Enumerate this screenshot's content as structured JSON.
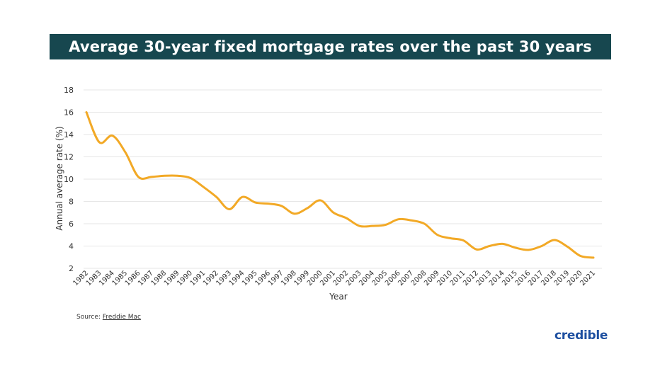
{
  "header": {
    "title": "Average 30-year fixed mortgage rates over the past 30 years"
  },
  "footer": {
    "source_label": "Source:",
    "source_link": "Freddie Mac",
    "logo": "credible"
  },
  "colors": {
    "title_bg": "#17474f",
    "line": "#f2a926",
    "grid": "#e6e6e6",
    "logo": "#1d4fa0"
  },
  "chart_data": {
    "type": "line",
    "title": "Average 30-year fixed mortgage rates over the past 30 years",
    "xlabel": "Year",
    "ylabel": "Annual average rate (%)",
    "ylim": [
      2,
      18
    ],
    "yticks": [
      2,
      4,
      6,
      8,
      10,
      12,
      14,
      16,
      18
    ],
    "grid": true,
    "x": [
      "1982",
      "1983",
      "1984",
      "1985",
      "1986",
      "1987",
      "1988",
      "1989",
      "1990",
      "1991",
      "1992",
      "1993",
      "1994",
      "1995",
      "1996",
      "1997",
      "1998",
      "1999",
      "2000",
      "2001",
      "2002",
      "2003",
      "2004",
      "2005",
      "2006",
      "2007",
      "2008",
      "2009",
      "2010",
      "2011",
      "2012",
      "2013",
      "2014",
      "2015",
      "2016",
      "2017",
      "2018",
      "2019",
      "2020",
      "2021"
    ],
    "series": [
      {
        "values": [
          16.0,
          13.3,
          13.9,
          12.4,
          10.2,
          10.2,
          10.3,
          10.3,
          10.1,
          9.3,
          8.4,
          7.3,
          8.4,
          7.9,
          7.8,
          7.6,
          6.9,
          7.4,
          8.1,
          7.0,
          6.5,
          5.8,
          5.8,
          5.9,
          6.4,
          6.3,
          6.0,
          5.0,
          4.7,
          4.5,
          3.7,
          4.0,
          4.2,
          3.85,
          3.65,
          3.99,
          4.54,
          3.94,
          3.11,
          2.96
        ]
      }
    ]
  }
}
